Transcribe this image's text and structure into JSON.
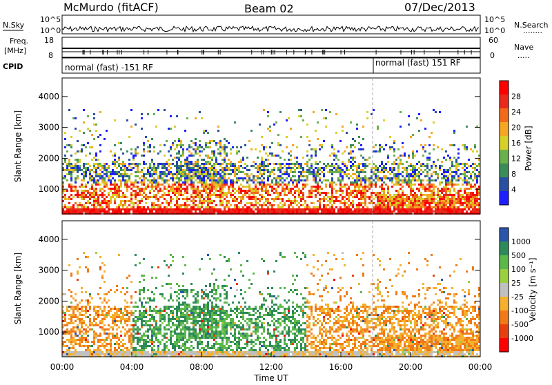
{
  "header": {
    "station": "McMurdo (fitACF)",
    "beam": "Beam 02",
    "date": "07/Dec/2013"
  },
  "strip_labels": {
    "nsky": "N.Sky",
    "freq": "Freq.",
    "mhz": "[MHz]",
    "cpid": "CPID",
    "nsearch": "N.Search",
    "nave": "Nave",
    "nsky_top": "10^5",
    "nsky_bottom": "10^0",
    "freq_top": "18",
    "freq_bottom": "8",
    "nave_top": "60",
    "nave_bottom": "0",
    "dots1": "........",
    "dots2": "....."
  },
  "cpid_labels": [
    "normal (fast) -151 RF",
    "normal (fast) 151 RF"
  ],
  "colors": {
    "power": [
      "#1e1eff",
      "#2a4fa0",
      "#3c8c5a",
      "#6ab04c",
      "#d8d02a",
      "#f5a623",
      "#f06a1a",
      "#e8291c",
      "#ff0000"
    ],
    "velocity": [
      "#ff0000",
      "#e8400c",
      "#f07a18",
      "#f5b030",
      "#c0c0c0",
      "#9ad040",
      "#5cb84a",
      "#2e8a5a",
      "#2a55a8"
    ]
  },
  "chart_data": [
    {
      "type": "heatmap",
      "title": "Power",
      "ylabel": "Slant Range [km]",
      "xlabel": "Time UT",
      "x_ticks": [
        "00:00",
        "04:00",
        "08:00",
        "12:00",
        "16:00",
        "20:00",
        "00:00"
      ],
      "y_ticks": [
        1000,
        2000,
        3000,
        4000
      ],
      "ylim": [
        200,
        4600
      ],
      "colorbar": {
        "label": "Power [dB]",
        "ticks": [
          "4",
          "8",
          "12",
          "16",
          "20",
          "24",
          "28"
        ]
      },
      "cpid_change_hour": 18.0
    },
    {
      "type": "heatmap",
      "title": "Velocity",
      "ylabel": "Slant Range [km]",
      "xlabel": "Time UT",
      "x_ticks": [
        "00:00",
        "04:00",
        "08:00",
        "12:00",
        "16:00",
        "20:00",
        "00:00"
      ],
      "y_ticks": [
        1000,
        2000,
        3000,
        4000
      ],
      "ylim": [
        200,
        4600
      ],
      "colorbar": {
        "label": "Velocity [m s⁻¹]",
        "ticks": [
          "1000",
          "500",
          "100",
          "25",
          "-25",
          "-100",
          "-500",
          "-1000"
        ]
      }
    }
  ],
  "x_title": "Time UT",
  "y_title": "Slant Range [km]",
  "cb_power_title": "Power [dB]",
  "cb_vel_title": "Velocity [m s⁻¹]"
}
